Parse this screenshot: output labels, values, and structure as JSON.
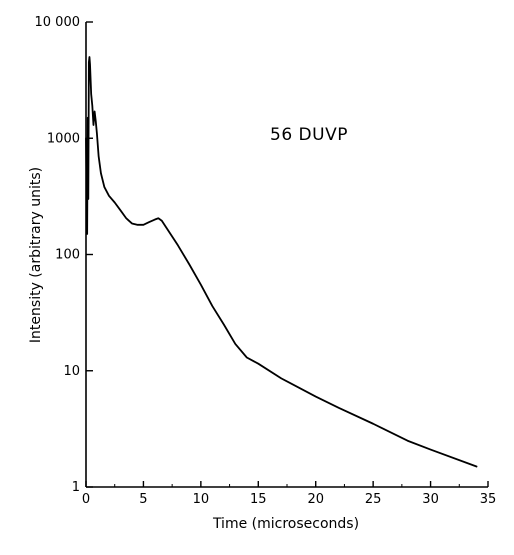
{
  "chart_data": {
    "type": "line",
    "title": "",
    "annotation": "56 DUVP",
    "xlabel": "Time (microseconds)",
    "ylabel": "Intensity (arbitrary units)",
    "xlim": [
      0,
      35
    ],
    "ylim": [
      1,
      10000
    ],
    "yscale": "log",
    "x_ticks": [
      0,
      5,
      10,
      15,
      20,
      25,
      30,
      35
    ],
    "x_tick_labels": [
      "0",
      "5",
      "10",
      "15",
      "20",
      "25",
      "30",
      "35"
    ],
    "y_ticks": [
      1,
      10,
      100,
      1000,
      10000
    ],
    "y_tick_labels": [
      "1",
      "10",
      "100",
      "1000",
      "10 000"
    ],
    "grid": false,
    "series": [
      {
        "name": "56 DUVP",
        "x": [
          0.0,
          0.05,
          0.1,
          0.15,
          0.2,
          0.25,
          0.3,
          0.35,
          0.45,
          0.55,
          0.65,
          0.75,
          0.85,
          0.95,
          1.1,
          1.3,
          1.6,
          2.0,
          2.5,
          3.0,
          3.5,
          4.0,
          4.5,
          5.0,
          5.5,
          6.0,
          6.3,
          6.6,
          7.0,
          8.0,
          9.0,
          10.0,
          11.0,
          12.0,
          13.0,
          14.0,
          15.0,
          17.0,
          20.0,
          22.0,
          25.0,
          28.0,
          30.0,
          34.0
        ],
        "y": [
          1000,
          400,
          150,
          1500,
          300,
          4500,
          5000,
          4300,
          2400,
          1900,
          1300,
          1700,
          1400,
          1100,
          700,
          500,
          380,
          320,
          280,
          240,
          205,
          185,
          180,
          180,
          190,
          200,
          205,
          195,
          170,
          120,
          82,
          55,
          36,
          25,
          17,
          13,
          11.5,
          8.6,
          6.0,
          4.8,
          3.5,
          2.5,
          2.1,
          1.5
        ]
      }
    ]
  }
}
